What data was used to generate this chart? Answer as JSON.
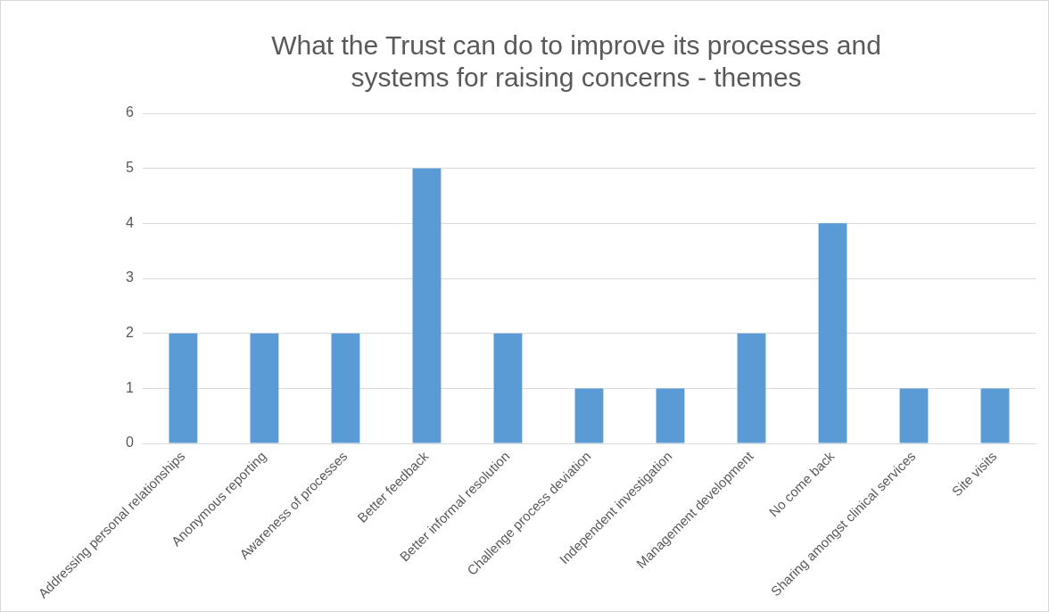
{
  "chart_data": {
    "type": "bar",
    "title": "What the Trust can do to improve its processes and systems for raising concerns - themes",
    "categories": [
      "Addressing personal relationships",
      "Anonymous reporting",
      "Awareness of processes",
      "Better feedback",
      "Better informal resolution",
      "Challenge process deviation",
      "Independent investigation",
      "Management development",
      "No come back",
      "Sharing amongst clinical services",
      "Site visits"
    ],
    "values": [
      2,
      2,
      2,
      5,
      2,
      1,
      1,
      2,
      4,
      1,
      1
    ],
    "color": "#5b9bd5",
    "ylim": [
      0,
      6
    ],
    "yticks": [
      0,
      1,
      2,
      3,
      4,
      5,
      6
    ],
    "grid": "y",
    "legend": false
  }
}
